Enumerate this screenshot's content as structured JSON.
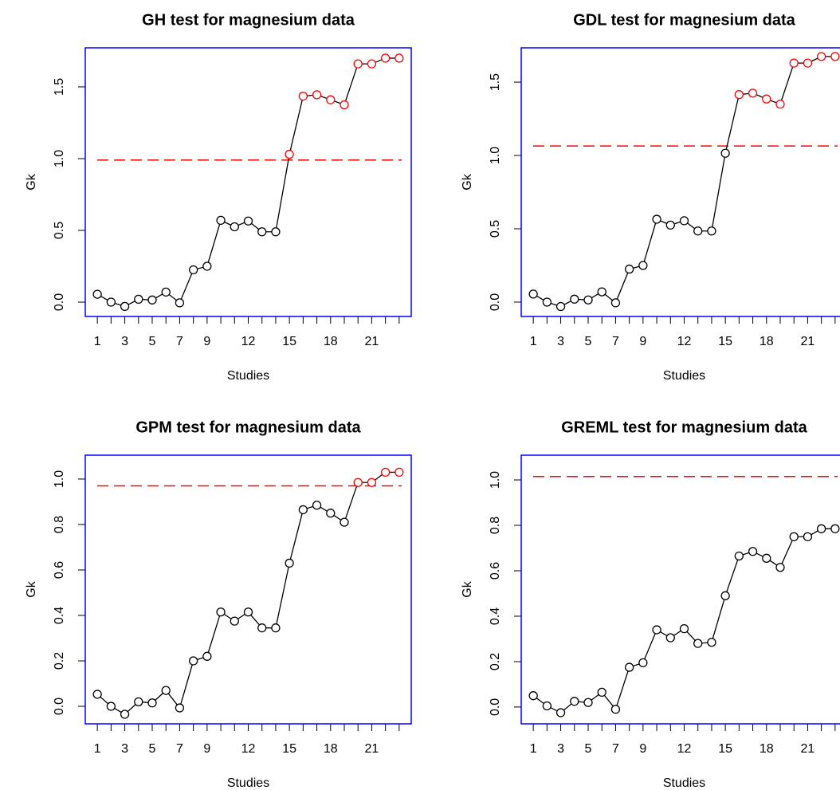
{
  "chart_data": [
    {
      "type": "line",
      "title": "GH test for magnesium data",
      "xlabel": "Studies",
      "ylabel": "Gk",
      "x": [
        1,
        2,
        3,
        4,
        5,
        6,
        7,
        8,
        9,
        10,
        11,
        12,
        13,
        14,
        15,
        16,
        17,
        18,
        19,
        20,
        21,
        22,
        23
      ],
      "values": [
        0.055,
        0.0,
        -0.03,
        0.02,
        0.015,
        0.07,
        -0.005,
        0.225,
        0.25,
        0.57,
        0.525,
        0.565,
        0.49,
        0.49,
        1.03,
        1.435,
        1.445,
        1.41,
        1.375,
        1.66,
        1.66,
        1.7,
        1.7
      ],
      "color": "black",
      "highlight_color": "red",
      "threshold": {
        "value": 0.99,
        "color": "red"
      },
      "box_color": "blue",
      "xlim": [
        0.12,
        23.88
      ],
      "xticks": [
        1,
        3,
        5,
        7,
        9,
        12,
        15,
        18,
        21
      ],
      "ylim": [
        -0.1,
        1.772
      ],
      "yticks": [
        {
          "value": 0,
          "label": "0.0"
        },
        0.5,
        {
          "value": 1,
          "label": "1.0"
        },
        1.5
      ]
    },
    {
      "type": "line",
      "title": "GDL test for magnesium data",
      "xlabel": "Studies",
      "ylabel": "Gk",
      "x": [
        1,
        2,
        3,
        4,
        5,
        6,
        7,
        8,
        9,
        10,
        11,
        12,
        13,
        14,
        15,
        16,
        17,
        18,
        19,
        20,
        21,
        22,
        23
      ],
      "values": [
        0.055,
        0.0,
        -0.03,
        0.02,
        0.015,
        0.07,
        -0.005,
        0.225,
        0.25,
        0.565,
        0.525,
        0.555,
        0.485,
        0.485,
        1.015,
        1.415,
        1.425,
        1.385,
        1.35,
        1.63,
        1.63,
        1.675,
        1.675
      ],
      "color": "black",
      "highlight_color": "red",
      "threshold": {
        "value": 1.065,
        "color": "red"
      },
      "box_color": "blue",
      "xlim": [
        0.12,
        23.88
      ],
      "xticks": [
        1,
        3,
        5,
        7,
        9,
        12,
        15,
        18,
        21
      ],
      "ylim": [
        -0.098,
        1.734
      ],
      "yticks": [
        {
          "value": 0,
          "label": "0.0"
        },
        0.5,
        {
          "value": 1,
          "label": "1.0"
        },
        1.5
      ]
    },
    {
      "type": "line",
      "title": "GPM test for magnesium data",
      "xlabel": "Studies",
      "ylabel": "Gk",
      "x": [
        1,
        2,
        3,
        4,
        5,
        6,
        7,
        8,
        9,
        10,
        11,
        12,
        13,
        14,
        15,
        16,
        17,
        18,
        19,
        20,
        21,
        22,
        23
      ],
      "values": [
        0.053,
        0.0,
        -0.035,
        0.02,
        0.015,
        0.07,
        -0.007,
        0.2,
        0.22,
        0.415,
        0.375,
        0.415,
        0.345,
        0.345,
        0.63,
        0.865,
        0.885,
        0.85,
        0.81,
        0.985,
        0.985,
        1.03,
        1.03
      ],
      "color": "black",
      "highlight_color": "red",
      "threshold": {
        "value": 0.97,
        "color": "red"
      },
      "box_color": "blue",
      "xlim": [
        0.12,
        23.88
      ],
      "xticks": [
        1,
        3,
        5,
        7,
        9,
        12,
        15,
        18,
        21
      ],
      "ylim": [
        -0.077,
        1.105
      ],
      "yticks": [
        {
          "value": 0,
          "label": "0.0"
        },
        0.2,
        0.4,
        0.6,
        0.8,
        {
          "value": 1,
          "label": "1.0"
        }
      ]
    },
    {
      "type": "line",
      "title": "GREML test for magnesium data",
      "xlabel": "Studies",
      "ylabel": "Gk",
      "x": [
        1,
        2,
        3,
        4,
        5,
        6,
        7,
        8,
        9,
        10,
        11,
        12,
        13,
        14,
        15,
        16,
        17,
        18,
        19,
        20,
        21,
        22,
        23
      ],
      "values": [
        0.05,
        0.005,
        -0.025,
        0.025,
        0.02,
        0.065,
        -0.01,
        0.175,
        0.195,
        0.34,
        0.305,
        0.345,
        0.28,
        0.285,
        0.49,
        0.665,
        0.685,
        0.655,
        0.615,
        0.75,
        0.75,
        0.785,
        0.785
      ],
      "color": "black",
      "highlight_color": "red",
      "threshold": {
        "value": 1.015,
        "color": "red"
      },
      "box_color": "blue",
      "xlim": [
        0.12,
        23.88
      ],
      "xticks": [
        1,
        3,
        5,
        7,
        9,
        12,
        15,
        18,
        21
      ],
      "ylim": [
        -0.074,
        1.109
      ],
      "yticks": [
        {
          "value": 0,
          "label": "0.0"
        },
        0.2,
        0.4,
        0.6,
        0.8,
        {
          "value": 1,
          "label": "1.0"
        }
      ]
    }
  ]
}
